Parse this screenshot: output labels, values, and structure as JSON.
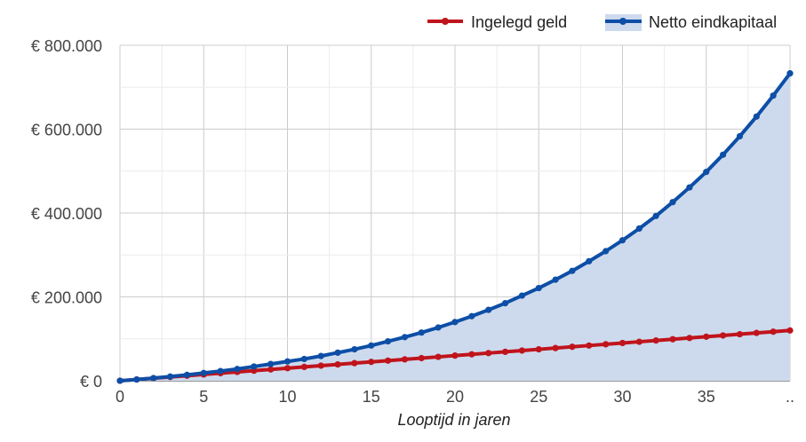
{
  "chart_data": {
    "type": "area",
    "x": [
      0,
      1,
      2,
      3,
      4,
      5,
      6,
      7,
      8,
      9,
      10,
      11,
      12,
      13,
      14,
      15,
      16,
      17,
      18,
      19,
      20,
      21,
      22,
      23,
      24,
      25,
      26,
      27,
      28,
      29,
      30,
      31,
      32,
      33,
      34,
      35,
      36,
      37,
      38,
      39,
      40
    ],
    "series": [
      {
        "name": "Ingelegd geld",
        "color": "#c0141c",
        "values": [
          0,
          3000,
          6000,
          9000,
          12000,
          15000,
          18000,
          21000,
          24000,
          27000,
          30000,
          33000,
          36000,
          39000,
          42000,
          45000,
          48000,
          51000,
          54000,
          57000,
          60000,
          63000,
          66000,
          69000,
          72000,
          75000,
          78000,
          81000,
          84000,
          87000,
          90000,
          93000,
          96000,
          99000,
          102000,
          105000,
          108000,
          111000,
          114000,
          117000,
          120000
        ]
      },
      {
        "name": "Netto eindkapitaal",
        "color": "#0d4ea6",
        "fill": "#cddaee",
        "values": [
          0,
          3000,
          6300,
          10000,
          14000,
          18500,
          23000,
          28000,
          34000,
          40000,
          46000,
          52000,
          59000,
          67000,
          75000,
          84000,
          94000,
          104000,
          115000,
          127000,
          140000,
          154000,
          169000,
          185000,
          203000,
          221000,
          241000,
          262000,
          285000,
          309000,
          335000,
          363000,
          393000,
          426000,
          461000,
          498000,
          539000,
          583000,
          630000,
          680000,
          733000
        ]
      }
    ],
    "xlabel": "Looptijd in jaren",
    "ylabel": "",
    "xlim": [
      0,
      40
    ],
    "ylim": [
      0,
      800000
    ],
    "x_ticks": [
      "0",
      "5",
      "10",
      "15",
      "20",
      "25",
      "30",
      "35",
      ".."
    ],
    "y_ticks": [
      "€ 0",
      "€ 200.000",
      "€ 400.000",
      "€ 600.000",
      "€ 800.000"
    ],
    "legend": "top-right",
    "grid": true
  }
}
